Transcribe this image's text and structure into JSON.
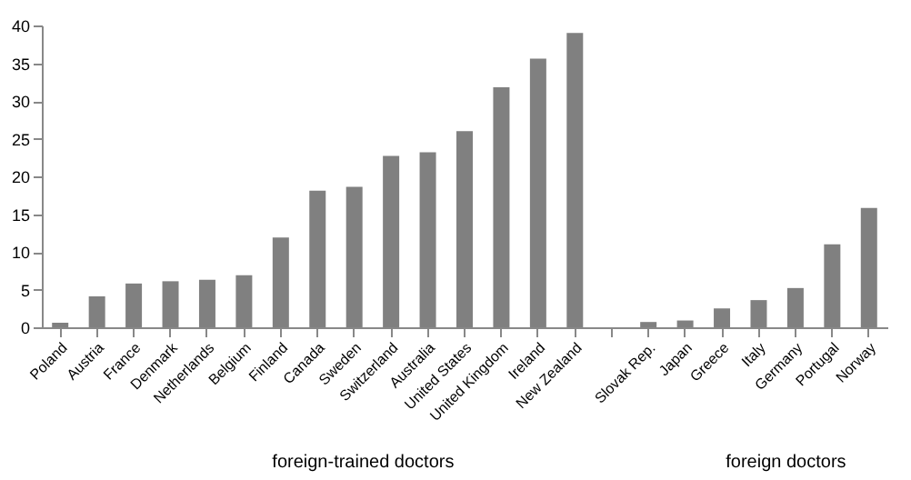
{
  "chart_data": {
    "type": "bar",
    "categories": [
      "Poland",
      "Austria",
      "France",
      "Denmark",
      "Netherlands",
      "Belgium",
      "Finland",
      "Canada",
      "Sweden",
      "Switzerland",
      "Australia",
      "United States",
      "United Kingdom",
      "Ireland",
      "New Zealand",
      null,
      "Slovak Rep.",
      "Japan",
      "Greece",
      "Italy",
      "Germany",
      "Portugal",
      "Norway"
    ],
    "values": [
      0.6,
      4.1,
      5.8,
      6.1,
      6.3,
      6.9,
      11.9,
      18.1,
      18.6,
      22.7,
      23.2,
      26.0,
      31.8,
      35.6,
      39.0,
      null,
      0.7,
      0.9,
      2.5,
      3.6,
      5.2,
      11.0,
      15.8
    ],
    "color": "#808080",
    "ylim": [
      0,
      40
    ],
    "yticks": [
      0,
      5,
      10,
      15,
      20,
      25,
      30,
      35,
      40
    ],
    "grid": false,
    "annotations": [
      "foreign-trained doctors",
      "foreign doctors"
    ]
  }
}
